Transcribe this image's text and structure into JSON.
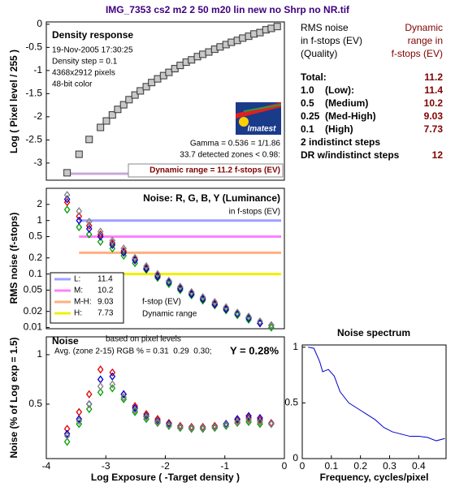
{
  "window_title": "IMG_7353 cs2 m2 2 50 m20 lin new no Shrp no NR.tif",
  "logo": "Imatest",
  "chart_data": [
    {
      "type": "scatter",
      "title": "Density response",
      "ylabel": "Log ( Pixel level / 255 )",
      "marker": "square",
      "annotations": [
        "19-Nov-2005 17:30:25",
        "Density step = 0.1",
        "4368x2912 pixels",
        "48-bit color",
        "Gamma = 0.536 = 1/1.86",
        "33.7 detected zones < 0.98:",
        "Dynamic range = 11.2 f-stops (EV)"
      ],
      "xlim": [
        -4,
        0
      ],
      "ylim": [
        -3.37,
        0.05
      ],
      "yticks": [
        0,
        -0.5,
        -1,
        -1.5,
        -2,
        -2.5,
        -3
      ],
      "x": [
        -3.65,
        -3.45,
        -3.28,
        -3.09,
        -2.99,
        -2.89,
        -2.8,
        -2.7,
        -2.61,
        -2.51,
        -2.42,
        -2.32,
        -2.23,
        -2.13,
        -2.03,
        -1.94,
        -1.84,
        -1.75,
        -1.65,
        -1.56,
        -1.46,
        -1.37,
        -1.27,
        -1.17,
        -1.08,
        -0.98,
        -0.89,
        -0.79,
        -0.7,
        -0.6,
        -0.51,
        -0.41,
        -0.31,
        -0.22,
        -0.12
      ],
      "series": [
        {
          "color": "#c8c8c8",
          "values": [
            -3.21,
            -2.81,
            -2.49,
            -2.23,
            -2.09,
            -1.96,
            -1.84,
            -1.74,
            -1.63,
            -1.53,
            -1.44,
            -1.35,
            -1.26,
            -1.18,
            -1.11,
            -1.04,
            -0.96,
            -0.89,
            -0.82,
            -0.77,
            -0.7,
            -0.65,
            -0.6,
            -0.54,
            -0.49,
            -0.44,
            -0.39,
            -0.35,
            -0.3,
            -0.26,
            -0.21,
            -0.18,
            -0.12,
            -0.09,
            -0.05
          ]
        }
      ]
    },
    {
      "type": "scatter",
      "title": "Noise: R, G, B, Y (Luminance)",
      "ylabel": "RMS noise (f-stops)",
      "marker": "diamond",
      "log_scale": true,
      "annotations": [
        "in f-stops (EV)",
        "f-stop (EV)",
        "Dynamic range"
      ],
      "xlim": [
        -4,
        0
      ],
      "ylim": [
        0.0095,
        4
      ],
      "yticks": [
        2,
        1,
        0.5,
        0.2,
        0.1,
        0.05,
        0.02,
        0.01
      ],
      "thresholds": [
        {
          "name": "L:",
          "color": "#a0a0ff",
          "value": 1,
          "dynamic_range": 11.4
        },
        {
          "name": "M:",
          "color": "#ff80ff",
          "value": 0.5,
          "dynamic_range": 10.2
        },
        {
          "name": "M-H:",
          "color": "#ffb080",
          "value": 0.25,
          "dynamic_range": 9.03
        },
        {
          "name": "H:",
          "color": "#f0f000",
          "value": 0.1,
          "dynamic_range": 7.73
        }
      ],
      "x": [
        -3.65,
        -3.45,
        -3.28,
        -3.09,
        -2.89,
        -2.7,
        -2.51,
        -2.32,
        -2.13,
        -1.94,
        -1.75,
        -1.56,
        -1.37,
        -1.17,
        -0.98,
        -0.79,
        -0.6,
        -0.41,
        -0.22
      ],
      "series": [
        {
          "color": "#e00000",
          "values": [
            2.2,
            1.2,
            0.8,
            0.55,
            0.38,
            0.27,
            0.19,
            0.13,
            0.095,
            0.072,
            0.055,
            0.044,
            0.035,
            0.028,
            0.023,
            0.018,
            0.015,
            0.012,
            0.011
          ]
        },
        {
          "color": "#00a000",
          "values": [
            1.6,
            0.75,
            0.55,
            0.4,
            0.3,
            0.22,
            0.16,
            0.12,
            0.085,
            0.065,
            0.05,
            0.04,
            0.032,
            0.026,
            0.021,
            0.017,
            0.014,
            0.012,
            0.01
          ]
        },
        {
          "color": "#0000d0",
          "values": [
            2.5,
            1.0,
            0.7,
            0.5,
            0.35,
            0.25,
            0.18,
            0.125,
            0.09,
            0.07,
            0.053,
            0.042,
            0.034,
            0.027,
            0.022,
            0.018,
            0.015,
            0.012,
            0.011
          ]
        },
        {
          "color": "#808080",
          "values": [
            3.0,
            1.5,
            0.95,
            0.62,
            0.42,
            0.3,
            0.2,
            0.14,
            0.1,
            0.075,
            0.058,
            0.046,
            0.037,
            0.03,
            0.024,
            0.019,
            0.016,
            0.013,
            0.011
          ]
        }
      ]
    },
    {
      "type": "scatter",
      "title": "Noise",
      "ylabel": "Noise (% of Log exp = 1.5)",
      "xlabel": "Log Exposure ( -Target density )",
      "marker": "diamond",
      "annotations": [
        "based on pixel levels",
        "Avg. (zone 2-15) RGB % = 0.31  0.29  0.30;",
        "Y = 0.28%"
      ],
      "xlim": [
        -4,
        0
      ],
      "ylim": [
        -0.05,
        1.18
      ],
      "xticks": [
        -4,
        -3,
        -2,
        -1,
        0
      ],
      "yticks": [
        0.5,
        1
      ],
      "x": [
        -3.65,
        -3.45,
        -3.28,
        -3.09,
        -2.89,
        -2.7,
        -2.51,
        -2.32,
        -2.13,
        -1.94,
        -1.75,
        -1.56,
        -1.37,
        -1.17,
        -0.98,
        -0.79,
        -0.6,
        -0.41,
        -0.22
      ],
      "series": [
        {
          "color": "#e00000",
          "values": [
            0.25,
            0.42,
            0.6,
            0.85,
            0.82,
            0.6,
            0.48,
            0.4,
            0.35,
            0.31,
            0.28,
            0.27,
            0.27,
            0.28,
            0.3,
            0.34,
            0.36,
            0.34,
            0.31
          ]
        },
        {
          "color": "#00a000",
          "values": [
            0.12,
            0.3,
            0.45,
            0.62,
            0.66,
            0.55,
            0.42,
            0.35,
            0.31,
            0.28,
            0.26,
            0.25,
            0.25,
            0.26,
            0.28,
            0.31,
            0.32,
            0.3,
            0.3
          ]
        },
        {
          "color": "#0000d0",
          "values": [
            0.2,
            0.35,
            0.5,
            0.75,
            0.78,
            0.6,
            0.46,
            0.38,
            0.33,
            0.3,
            0.27,
            0.26,
            0.26,
            0.27,
            0.3,
            0.35,
            0.38,
            0.36,
            0.3
          ]
        },
        {
          "color": "#808080",
          "values": [
            0.18,
            0.33,
            0.5,
            0.68,
            0.7,
            0.57,
            0.44,
            0.37,
            0.32,
            0.29,
            0.27,
            0.26,
            0.26,
            0.27,
            0.29,
            0.32,
            0.34,
            0.32,
            0.3
          ]
        }
      ]
    },
    {
      "type": "line",
      "title": "Noise spectrum",
      "xlabel": "Frequency, cycles/pixel",
      "color": "#0000d0",
      "xlim": [
        0,
        0.494
      ],
      "ylim": [
        0,
        1.02
      ],
      "xticks": [
        0,
        0.1,
        0.2,
        0.3,
        0.4
      ],
      "yticks": [
        0,
        0.5,
        1
      ],
      "x": [
        0.02,
        0.04,
        0.06,
        0.07,
        0.09,
        0.11,
        0.13,
        0.16,
        0.19,
        0.22,
        0.25,
        0.28,
        0.31,
        0.34,
        0.37,
        0.4,
        0.43,
        0.46,
        0.49
      ],
      "values": [
        1,
        0.99,
        0.87,
        0.78,
        0.8,
        0.74,
        0.6,
        0.5,
        0.45,
        0.4,
        0.35,
        0.28,
        0.24,
        0.22,
        0.2,
        0.2,
        0.19,
        0.16,
        0.18
      ]
    }
  ],
  "summary": {
    "header_left": [
      "RMS noise",
      "in f-stops (EV)",
      "(Quality)"
    ],
    "header_right": [
      "Dynamic",
      "range in",
      "f-stops (EV)"
    ],
    "rows": [
      {
        "label": "Total:",
        "value": 11.2
      },
      {
        "label": "1.0    (Low):",
        "value": 11.4
      },
      {
        "label": "0.5    (Medium)",
        "value": 10.2
      },
      {
        "label": "0.25  (Med-High)",
        "value": 9.03
      },
      {
        "label": "0.1    (High)",
        "value": 7.73
      },
      {
        "label": "2 indistinct steps"
      },
      {
        "label": "DR w/indistinct steps",
        "value": 12
      }
    ]
  }
}
